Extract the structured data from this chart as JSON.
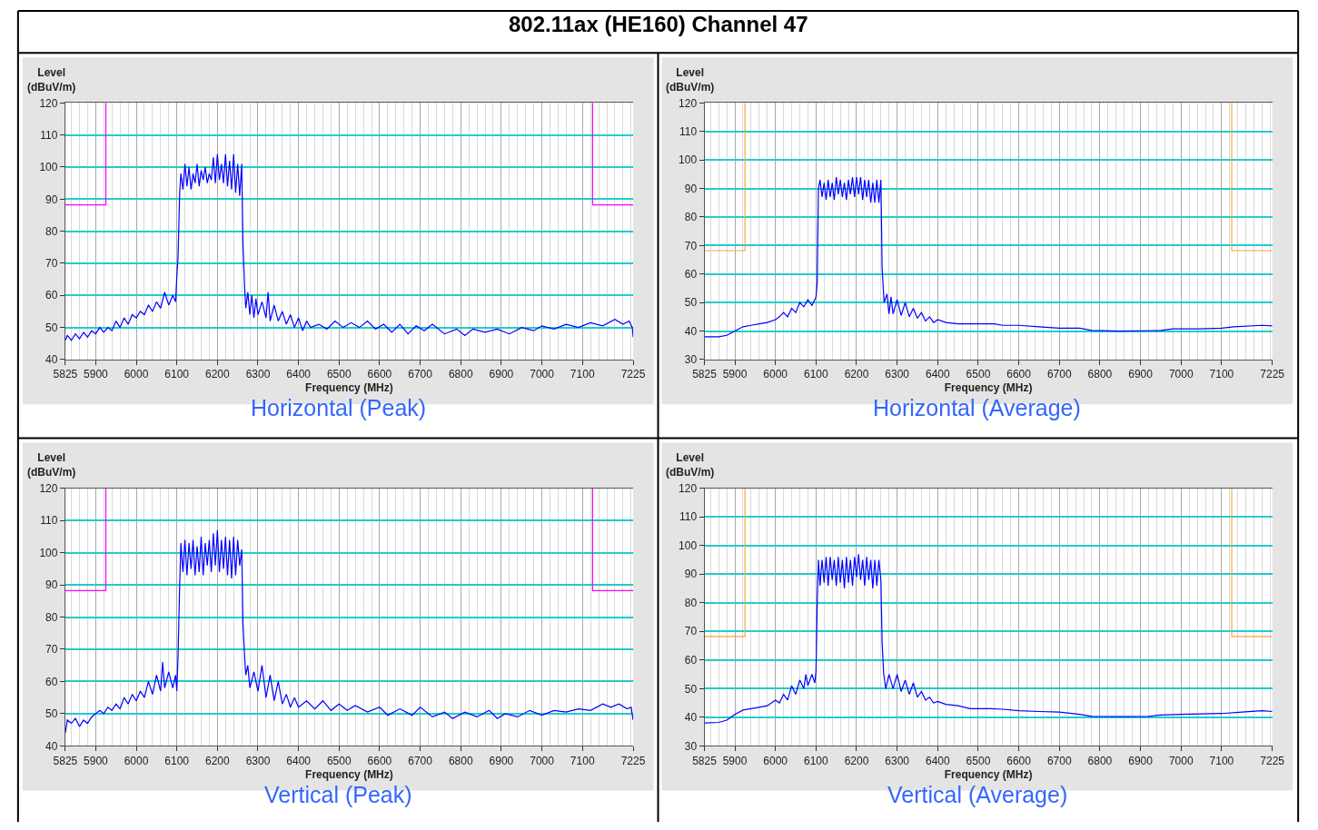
{
  "chart_data": [
    {
      "type": "line",
      "title": "Horizontal (Peak)",
      "xlabel": "Frequency (MHz)",
      "ylabel": "Level\n(dBuV/m)",
      "annotations": [
        "802.11ax (HE160) Channel 47"
      ],
      "grid": true,
      "xlim": [
        5825,
        7225
      ],
      "xticks": [
        5825,
        5900,
        6000,
        6100,
        6200,
        6300,
        6400,
        6500,
        6600,
        6700,
        6800,
        6900,
        7000,
        7100,
        7225
      ],
      "ylim": [
        40,
        120
      ],
      "yticks": [
        40,
        50,
        60,
        70,
        80,
        90,
        100,
        110,
        120
      ],
      "series": [
        {
          "color": "#ff00ff",
          "x": [
            5825,
            5925,
            5925,
            6525,
            7125,
            7125,
            7225
          ],
          "values": [
            88.2,
            88.2,
            120,
            null,
            120,
            88.2,
            88.2
          ]
        },
        {
          "color": "#0000ff",
          "x": [
            5825,
            5830,
            5840,
            5850,
            5860,
            5870,
            5880,
            5890,
            5900,
            5910,
            5920,
            5930,
            5940,
            5950,
            5960,
            5970,
            5980,
            5990,
            6000,
            6010,
            6020,
            6030,
            6040,
            6050,
            6060,
            6070,
            6080,
            6090,
            6097,
            6100,
            6103,
            6107,
            6110,
            6115,
            6120,
            6125,
            6130,
            6135,
            6140,
            6145,
            6150,
            6155,
            6160,
            6165,
            6170,
            6175,
            6180,
            6185,
            6190,
            6195,
            6200,
            6205,
            6210,
            6215,
            6220,
            6225,
            6230,
            6235,
            6240,
            6245,
            6250,
            6255,
            6260,
            6263,
            6267,
            6270,
            6275,
            6280,
            6285,
            6290,
            6295,
            6300,
            6310,
            6320,
            6325,
            6330,
            6340,
            6350,
            6360,
            6370,
            6380,
            6390,
            6400,
            6410,
            6420,
            6430,
            6450,
            6470,
            6490,
            6510,
            6530,
            6550,
            6570,
            6590,
            6610,
            6630,
            6650,
            6670,
            6690,
            6710,
            6730,
            6760,
            6790,
            6810,
            6830,
            6860,
            6890,
            6920,
            6950,
            6980,
            7000,
            7030,
            7060,
            7090,
            7120,
            7150,
            7180,
            7200,
            7215,
            7223,
            7225
          ],
          "values": [
            46,
            47.5,
            46,
            48,
            46.5,
            48.5,
            47,
            49,
            48,
            50,
            48.5,
            50,
            49,
            52,
            50,
            53,
            51,
            54,
            53,
            55,
            54,
            57,
            55,
            58,
            56,
            61,
            57,
            60,
            58,
            66,
            72,
            92,
            98,
            93,
            101,
            94,
            100,
            93,
            98,
            95,
            101,
            94,
            99,
            96,
            100,
            95,
            98,
            96,
            103,
            95,
            104,
            96,
            101,
            95,
            104,
            94,
            102,
            93,
            104,
            92,
            101,
            91,
            101,
            76,
            63,
            56,
            61,
            54,
            60,
            53,
            59,
            54,
            58,
            53,
            61,
            52,
            57,
            52,
            55,
            51,
            54,
            50,
            53,
            49,
            52,
            50,
            51,
            49.5,
            52,
            50,
            51.5,
            50,
            52,
            49.5,
            51,
            48.5,
            51,
            48,
            50.5,
            49,
            51,
            48,
            49.5,
            47.5,
            49.5,
            48.5,
            49.5,
            48,
            50,
            49,
            50.5,
            49.5,
            51,
            50,
            51.5,
            50.5,
            52.5,
            51,
            52,
            50,
            47
          ]
        }
      ]
    },
    {
      "type": "line",
      "title": "Horizontal (Average)",
      "xlabel": "Frequency (MHz)",
      "ylabel": "Level\n(dBuV/m)",
      "grid": true,
      "xlim": [
        5825,
        7225
      ],
      "xticks": [
        5825,
        5900,
        6000,
        6100,
        6200,
        6300,
        6400,
        6500,
        6600,
        6700,
        6800,
        6900,
        7000,
        7100,
        7225
      ],
      "ylim": [
        30,
        120
      ],
      "yticks": [
        30,
        40,
        50,
        60,
        70,
        80,
        90,
        100,
        110,
        120
      ],
      "series": [
        {
          "color": "#f5a742",
          "x": [
            5825,
            5925,
            5925,
            6525,
            7125,
            7125,
            7225
          ],
          "values": [
            68.2,
            68.2,
            120,
            null,
            120,
            68.2,
            68.2
          ]
        },
        {
          "color": "#0000ff",
          "x": [
            5825,
            5860,
            5880,
            5900,
            5920,
            5940,
            5960,
            5980,
            6000,
            6010,
            6020,
            6030,
            6040,
            6050,
            6060,
            6070,
            6080,
            6090,
            6097,
            6100,
            6103,
            6106,
            6110,
            6115,
            6120,
            6125,
            6130,
            6135,
            6140,
            6145,
            6150,
            6155,
            6160,
            6165,
            6170,
            6175,
            6180,
            6185,
            6190,
            6195,
            6200,
            6205,
            6210,
            6215,
            6220,
            6225,
            6230,
            6235,
            6240,
            6245,
            6250,
            6255,
            6260,
            6263,
            6268,
            6275,
            6280,
            6285,
            6290,
            6300,
            6310,
            6320,
            6330,
            6340,
            6350,
            6360,
            6370,
            6380,
            6390,
            6400,
            6420,
            6450,
            6500,
            6540,
            6560,
            6600,
            6650,
            6700,
            6750,
            6780,
            6850,
            6950,
            6980,
            7050,
            7100,
            7130,
            7200,
            7225
          ],
          "values": [
            38,
            38,
            38.5,
            40,
            41.5,
            42,
            42.5,
            43,
            44,
            45,
            46.5,
            45,
            48,
            46.5,
            50,
            48.5,
            51,
            49,
            51,
            52,
            57,
            90,
            93,
            87,
            92,
            86,
            93,
            87,
            92,
            86,
            94,
            88,
            93,
            87,
            92,
            86,
            93,
            88,
            94,
            87,
            94,
            88,
            94,
            86,
            93,
            87,
            93,
            85,
            92,
            85,
            93,
            85,
            93,
            62,
            50,
            53,
            46,
            52,
            46,
            51,
            45.5,
            50,
            45,
            48,
            44.5,
            46.5,
            43.5,
            45,
            43,
            44,
            43,
            42.5,
            42.5,
            42.5,
            42,
            42,
            41.5,
            41,
            41,
            40.2,
            40,
            40.2,
            40.8,
            40.8,
            41,
            41.5,
            42,
            41.8
          ]
        }
      ]
    },
    {
      "type": "line",
      "title": "Vertical (Peak)",
      "xlabel": "Frequency (MHz)",
      "ylabel": "Level\n(dBuV/m)",
      "grid": true,
      "xlim": [
        5825,
        7225
      ],
      "xticks": [
        5825,
        5900,
        6000,
        6100,
        6200,
        6300,
        6400,
        6500,
        6600,
        6700,
        6800,
        6900,
        7000,
        7100,
        7225
      ],
      "ylim": [
        40,
        120
      ],
      "yticks": [
        40,
        50,
        60,
        70,
        80,
        90,
        100,
        110,
        120
      ],
      "series": [
        {
          "color": "#ff00ff",
          "x": [
            5825,
            5925,
            5925,
            6525,
            7125,
            7125,
            7225
          ],
          "values": [
            88.2,
            88.2,
            120,
            null,
            120,
            88.2,
            88.2
          ]
        },
        {
          "color": "#0000ff",
          "x": [
            5825,
            5830,
            5840,
            5850,
            5860,
            5870,
            5880,
            5890,
            5900,
            5910,
            5920,
            5930,
            5940,
            5950,
            5960,
            5970,
            5980,
            5990,
            6000,
            6010,
            6020,
            6030,
            6040,
            6050,
            6060,
            6065,
            6070,
            6080,
            6090,
            6097,
            6100,
            6103,
            6107,
            6110,
            6115,
            6120,
            6125,
            6130,
            6135,
            6140,
            6145,
            6150,
            6155,
            6160,
            6165,
            6170,
            6175,
            6180,
            6185,
            6190,
            6195,
            6200,
            6205,
            6210,
            6215,
            6220,
            6225,
            6230,
            6235,
            6240,
            6245,
            6250,
            6255,
            6260,
            6263,
            6267,
            6270,
            6275,
            6280,
            6290,
            6300,
            6310,
            6320,
            6330,
            6340,
            6350,
            6360,
            6370,
            6380,
            6390,
            6400,
            6420,
            6440,
            6460,
            6480,
            6500,
            6520,
            6540,
            6570,
            6600,
            6620,
            6650,
            6680,
            6700,
            6730,
            6760,
            6780,
            6810,
            6840,
            6870,
            6890,
            6910,
            6940,
            6970,
            7000,
            7030,
            7060,
            7090,
            7120,
            7150,
            7170,
            7190,
            7210,
            7220,
            7225
          ],
          "values": [
            44,
            48,
            47,
            48.5,
            46,
            48,
            47,
            49,
            50,
            51,
            50,
            52,
            51,
            53,
            51.5,
            55,
            53,
            56,
            54,
            57,
            55,
            60,
            56,
            62,
            57,
            66,
            58,
            63,
            58,
            62,
            57,
            68,
            90,
            103,
            94,
            104,
            93,
            103,
            95,
            104,
            93,
            102,
            94,
            105,
            93,
            103,
            96,
            104,
            94,
            106,
            96,
            107,
            94,
            104,
            95,
            105,
            93,
            104,
            92,
            105,
            93,
            104,
            96,
            101,
            78,
            68,
            62,
            65,
            58,
            63,
            57,
            65,
            55,
            62,
            54,
            60,
            53,
            56,
            52,
            55,
            52,
            54,
            51.5,
            54,
            51,
            53,
            51,
            52.5,
            50.5,
            52,
            49.5,
            51.5,
            49.5,
            52,
            49,
            50.5,
            48.5,
            50.5,
            49,
            51,
            48.5,
            50,
            49,
            51,
            49.5,
            51,
            50.5,
            51.5,
            51,
            53,
            52,
            53,
            51.5,
            52,
            48
          ]
        }
      ]
    },
    {
      "type": "line",
      "title": "Vertical (Average)",
      "xlabel": "Frequency (MHz)",
      "ylabel": "Level\n(dBuV/m)",
      "grid": true,
      "xlim": [
        5825,
        7225
      ],
      "xticks": [
        5825,
        5900,
        6000,
        6100,
        6200,
        6300,
        6400,
        6500,
        6600,
        6700,
        6800,
        6900,
        7000,
        7100,
        7225
      ],
      "ylim": [
        30,
        120
      ],
      "yticks": [
        30,
        40,
        50,
        60,
        70,
        80,
        90,
        100,
        110,
        120
      ],
      "series": [
        {
          "color": "#f5a742",
          "x": [
            5825,
            5925,
            5925,
            6525,
            7125,
            7125,
            7225
          ],
          "values": [
            68.2,
            68.2,
            120,
            null,
            120,
            68.2,
            68.2
          ]
        },
        {
          "color": "#0000ff",
          "x": [
            5825,
            5860,
            5880,
            5900,
            5920,
            5940,
            5960,
            5980,
            6000,
            6010,
            6020,
            6030,
            6040,
            6050,
            6060,
            6070,
            6075,
            6080,
            6090,
            6097,
            6100,
            6103,
            6106,
            6110,
            6115,
            6120,
            6125,
            6130,
            6135,
            6140,
            6145,
            6150,
            6155,
            6160,
            6165,
            6170,
            6175,
            6180,
            6185,
            6190,
            6195,
            6200,
            6205,
            6210,
            6215,
            6220,
            6225,
            6230,
            6235,
            6240,
            6245,
            6250,
            6255,
            6260,
            6263,
            6267,
            6272,
            6280,
            6290,
            6300,
            6310,
            6320,
            6330,
            6340,
            6350,
            6360,
            6370,
            6380,
            6390,
            6400,
            6420,
            6450,
            6480,
            6530,
            6560,
            6600,
            6650,
            6700,
            6750,
            6780,
            6850,
            6920,
            6950,
            7000,
            7100,
            7150,
            7200,
            7225
          ],
          "values": [
            38,
            38.2,
            39,
            41,
            42.5,
            43,
            43.5,
            44,
            46,
            45,
            48,
            46,
            51,
            48,
            53,
            50,
            55,
            51,
            55,
            52,
            56,
            80,
            95,
            86,
            95,
            87,
            96,
            86,
            96,
            88,
            95,
            86,
            96,
            87,
            95,
            85,
            96,
            87,
            95,
            86,
            96,
            89,
            97,
            88,
            95,
            86,
            96,
            88,
            95,
            85,
            95,
            86,
            95,
            88,
            66,
            55,
            50,
            55,
            50,
            55,
            49,
            53,
            48,
            52,
            47,
            49,
            46,
            47,
            45,
            45.5,
            44.5,
            44,
            43,
            43,
            42.8,
            42.3,
            42,
            41.8,
            41,
            40.3,
            40.2,
            40.3,
            40.8,
            41,
            41.3,
            41.8,
            42.3,
            42
          ]
        }
      ]
    }
  ]
}
